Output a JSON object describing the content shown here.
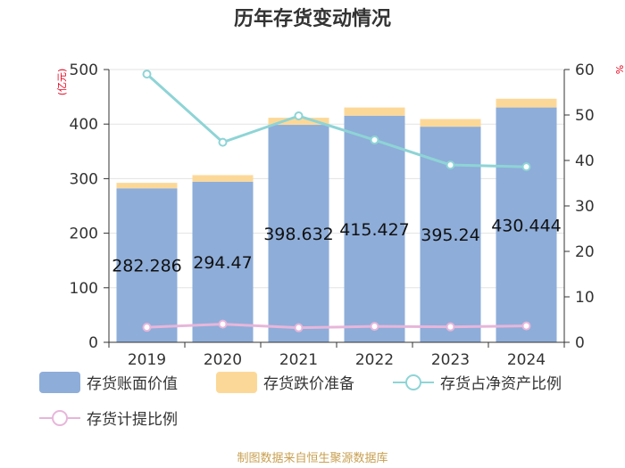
{
  "chart_data": {
    "type": "bar",
    "title": "历年存货变动情况",
    "categories": [
      "2019",
      "2020",
      "2021",
      "2022",
      "2023",
      "2024"
    ],
    "left_axis": {
      "unit": "(亿元)",
      "ylim": [
        0,
        500
      ],
      "ticks": [
        "0",
        "100",
        "200",
        "300",
        "400",
        "500"
      ]
    },
    "right_axis": {
      "unit": "%",
      "ylim": [
        0,
        60
      ],
      "ticks": [
        "0",
        "10",
        "20",
        "30",
        "40",
        "50",
        "60"
      ]
    },
    "series": [
      {
        "name": "存货账面价值",
        "kind": "bar",
        "axis": "left",
        "color": "#8eadd9",
        "values": [
          282.286,
          294.47,
          398.632,
          415.427,
          395.24,
          430.444
        ],
        "labels": [
          "282.286",
          "294.47",
          "398.632",
          "415.427",
          "395.24",
          "430.444"
        ]
      },
      {
        "name": "存货跌价准备",
        "kind": "bar-stack",
        "axis": "left",
        "color": "#fcd898",
        "values": [
          10,
          12,
          13,
          15,
          14,
          16
        ]
      },
      {
        "name": "存货占净资产比例",
        "kind": "line",
        "axis": "right",
        "color": "#8ed4d6",
        "values": [
          59,
          44,
          49.8,
          44.5,
          39,
          38.6
        ]
      },
      {
        "name": "存货计提比例",
        "kind": "line",
        "axis": "right",
        "color": "#e7b6da",
        "values": [
          3.3,
          4,
          3.2,
          3.5,
          3.4,
          3.6
        ]
      }
    ],
    "source": "制图数据来自恒生聚源数据库"
  }
}
